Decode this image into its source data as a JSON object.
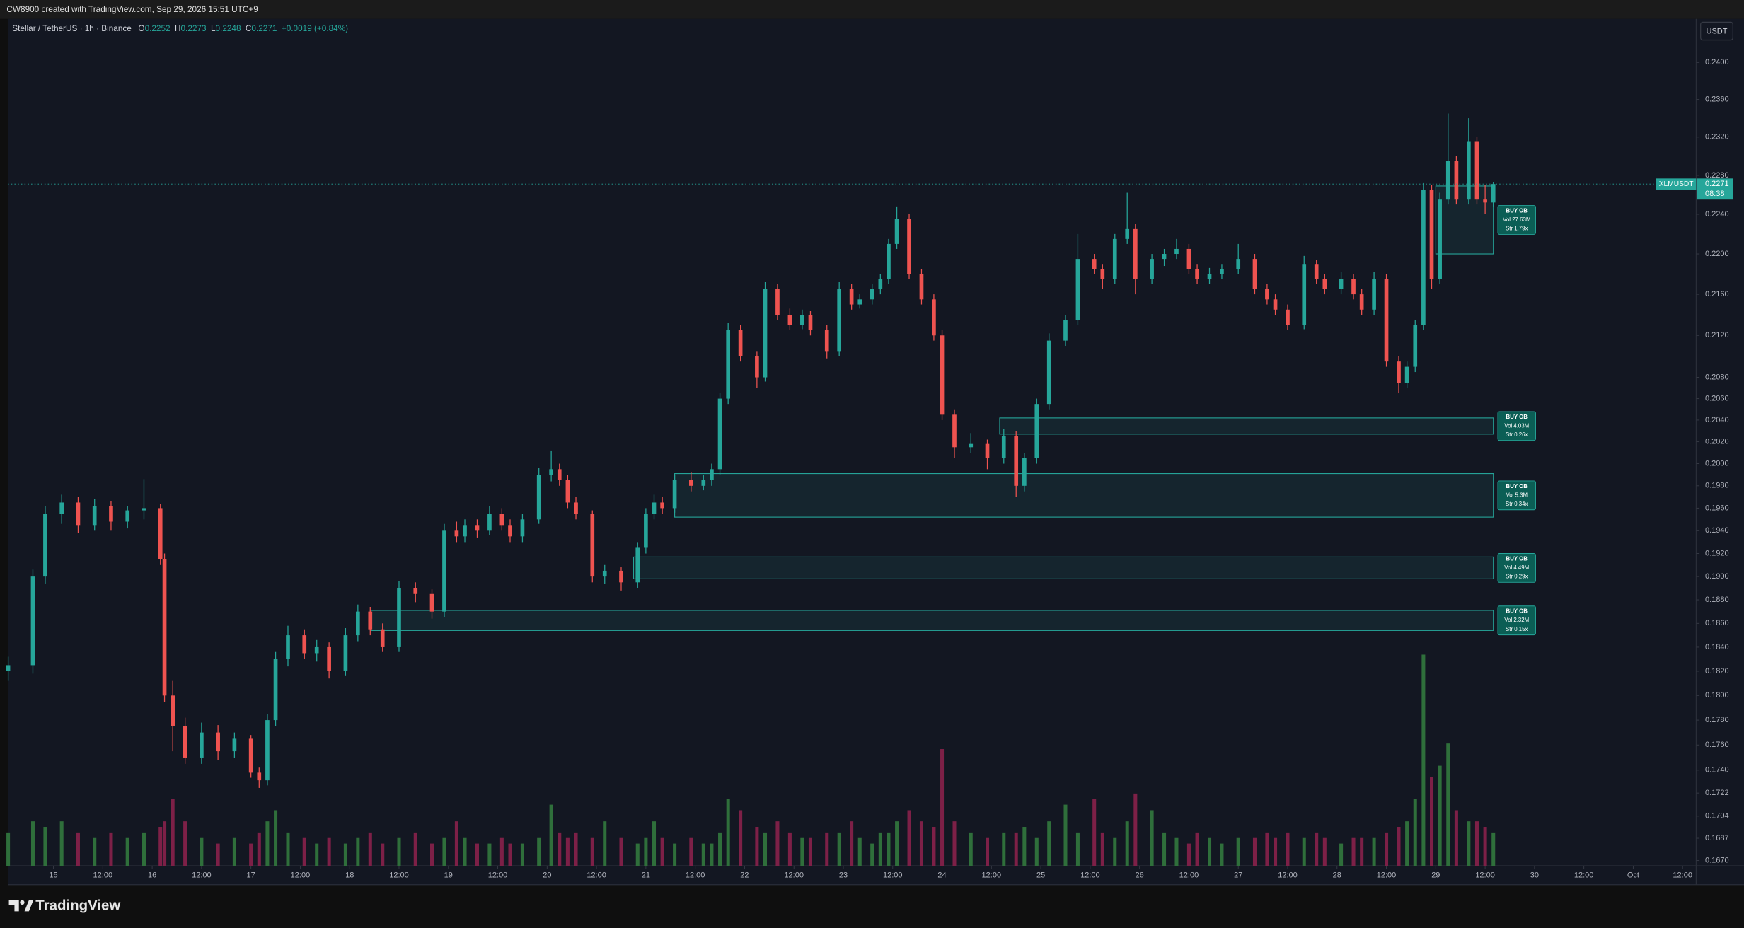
{
  "header": {
    "watermark": "CW8900 created with TradingView.com, Sep 29, 2026 15:51 UTC+9"
  },
  "footer": {
    "brand": "TradingView"
  },
  "chart_data": {
    "type": "candlestick",
    "title": "Stellar / TetherUS · 1h · Binance",
    "ohlc_legend": [
      {
        "label": "O",
        "value": 0.2252
      },
      {
        "label": "H",
        "value": 0.2273
      },
      {
        "label": "L",
        "value": 0.2248
      },
      {
        "label": "C",
        "value": 0.2271
      }
    ],
    "change": "+0.0019 (+0.84%)",
    "currency": "USDT",
    "symbol_tag": "XLMUSDT",
    "last_price": 0.2271,
    "countdown": "08:38",
    "log_scale": true,
    "grid": false,
    "up_color": "#26a69a",
    "down_color": "#ef5350",
    "volume_colors": {
      "up": "#2f6f3b",
      "down": "#7d2047"
    },
    "xlim": [
      -11.1,
      399.3
    ],
    "xticks": [
      {
        "value": 0,
        "label": "15"
      },
      {
        "value": 12,
        "label": "12:00"
      },
      {
        "value": 24,
        "label": "16"
      },
      {
        "value": 36,
        "label": "12:00"
      },
      {
        "value": 48,
        "label": "17"
      },
      {
        "value": 60,
        "label": "12:00"
      },
      {
        "value": 72,
        "label": "18"
      },
      {
        "value": 84,
        "label": "12:00"
      },
      {
        "value": 96,
        "label": "19"
      },
      {
        "value": 108,
        "label": "12:00"
      },
      {
        "value": 120,
        "label": "20"
      },
      {
        "value": 132,
        "label": "12:00"
      },
      {
        "value": 144,
        "label": "21"
      },
      {
        "value": 156,
        "label": "12:00"
      },
      {
        "value": 168,
        "label": "22"
      },
      {
        "value": 180,
        "label": "12:00"
      },
      {
        "value": 192,
        "label": "23"
      },
      {
        "value": 204,
        "label": "12:00"
      },
      {
        "value": 216,
        "label": "24"
      },
      {
        "value": 228,
        "label": "12:00"
      },
      {
        "value": 240,
        "label": "25"
      },
      {
        "value": 252,
        "label": "12:00"
      },
      {
        "value": 264,
        "label": "26"
      },
      {
        "value": 276,
        "label": "12:00"
      },
      {
        "value": 288,
        "label": "27"
      },
      {
        "value": 300,
        "label": "12:00"
      },
      {
        "value": 312,
        "label": "28"
      },
      {
        "value": 324,
        "label": "12:00"
      },
      {
        "value": 336,
        "label": "29"
      },
      {
        "value": 348,
        "label": "12:00"
      },
      {
        "value": 360,
        "label": "30"
      },
      {
        "value": 372,
        "label": "12:00"
      },
      {
        "value": 384,
        "label": "Oct"
      },
      {
        "value": 396,
        "label": "12:00"
      }
    ],
    "ylim": [
      0.1666,
      0.2448
    ],
    "yticks": [
      {
        "value": 0.24,
        "label": "0.2400"
      },
      {
        "value": 0.236,
        "label": "0.2360"
      },
      {
        "value": 0.232,
        "label": "0.2320"
      },
      {
        "value": 0.228,
        "label": "0.2280"
      },
      {
        "value": 0.224,
        "label": "0.2240"
      },
      {
        "value": 0.22,
        "label": "0.2200"
      },
      {
        "value": 0.216,
        "label": "0.2160"
      },
      {
        "value": 0.212,
        "label": "0.2120"
      },
      {
        "value": 0.208,
        "label": "0.2080"
      },
      {
        "value": 0.206,
        "label": "0.2060"
      },
      {
        "value": 0.204,
        "label": "0.2040"
      },
      {
        "value": 0.202,
        "label": "0.2020"
      },
      {
        "value": 0.2,
        "label": "0.2000"
      },
      {
        "value": 0.198,
        "label": "0.1980"
      },
      {
        "value": 0.196,
        "label": "0.1960"
      },
      {
        "value": 0.194,
        "label": "0.1940"
      },
      {
        "value": 0.192,
        "label": "0.1920"
      },
      {
        "value": 0.19,
        "label": "0.1900"
      },
      {
        "value": 0.188,
        "label": "0.1880"
      },
      {
        "value": 0.186,
        "label": "0.1860"
      },
      {
        "value": 0.184,
        "label": "0.1840"
      },
      {
        "value": 0.182,
        "label": "0.1820"
      },
      {
        "value": 0.18,
        "label": "0.1800"
      },
      {
        "value": 0.178,
        "label": "0.1780"
      },
      {
        "value": 0.176,
        "label": "0.1760"
      },
      {
        "value": 0.174,
        "label": "0.1740"
      },
      {
        "value": 0.1722,
        "label": "0.1722"
      },
      {
        "value": 0.1704,
        "label": "0.1704"
      },
      {
        "value": 0.1687,
        "label": "0.1687"
      },
      {
        "value": 0.167,
        "label": "0.1670"
      }
    ],
    "x": [
      -11,
      -5,
      -2,
      2,
      6,
      10,
      14,
      18,
      22,
      26,
      27,
      29,
      32,
      36,
      40,
      44,
      48,
      50,
      52,
      54,
      57,
      61,
      64,
      67,
      71,
      74,
      77,
      80,
      84,
      88,
      92,
      95,
      98,
      100,
      103,
      106,
      109,
      111,
      114,
      118,
      121,
      123,
      125,
      127,
      131,
      134,
      138,
      142,
      144,
      146,
      148,
      151,
      155,
      158,
      160,
      162,
      164,
      167,
      171,
      173,
      176,
      179,
      182,
      184,
      188,
      191,
      194,
      196,
      199,
      201,
      203,
      205,
      208,
      211,
      214,
      216,
      219,
      223,
      227,
      231,
      234,
      236,
      239,
      242,
      246,
      249,
      253,
      255,
      258,
      261,
      263,
      267,
      270,
      273,
      276,
      278,
      281,
      284,
      288,
      292,
      295,
      297,
      300,
      304,
      307,
      309,
      313,
      316,
      318,
      321,
      324,
      327,
      329,
      331,
      333,
      335,
      337,
      339,
      341,
      344,
      346,
      348,
      350
    ],
    "ohlc": [
      [
        0.182,
        0.1832,
        0.1812,
        0.1825
      ],
      [
        0.1825,
        0.1906,
        0.1818,
        0.19
      ],
      [
        0.19,
        0.1962,
        0.1894,
        0.1955
      ],
      [
        0.1955,
        0.1972,
        0.1946,
        0.1965
      ],
      [
        0.1965,
        0.197,
        0.1938,
        0.1945
      ],
      [
        0.1945,
        0.1968,
        0.194,
        0.1962
      ],
      [
        0.1962,
        0.1966,
        0.194,
        0.1948
      ],
      [
        0.1948,
        0.1962,
        0.1942,
        0.1958
      ],
      [
        0.1958,
        0.1986,
        0.195,
        0.196
      ],
      [
        0.196,
        0.1964,
        0.191,
        0.1915
      ],
      [
        0.1915,
        0.192,
        0.1795,
        0.18
      ],
      [
        0.18,
        0.1812,
        0.1755,
        0.1775
      ],
      [
        0.1775,
        0.1782,
        0.1745,
        0.175
      ],
      [
        0.175,
        0.1778,
        0.1745,
        0.177
      ],
      [
        0.177,
        0.1776,
        0.1748,
        0.1755
      ],
      [
        0.1755,
        0.177,
        0.175,
        0.1765
      ],
      [
        0.1765,
        0.1768,
        0.1734,
        0.1738
      ],
      [
        0.1738,
        0.1742,
        0.1726,
        0.1732
      ],
      [
        0.1732,
        0.1785,
        0.1728,
        0.178
      ],
      [
        0.178,
        0.1836,
        0.1775,
        0.183
      ],
      [
        0.183,
        0.1858,
        0.1824,
        0.185
      ],
      [
        0.185,
        0.1855,
        0.183,
        0.1835
      ],
      [
        0.1835,
        0.1846,
        0.1828,
        0.184
      ],
      [
        0.184,
        0.1844,
        0.1814,
        0.182
      ],
      [
        0.182,
        0.1856,
        0.1816,
        0.185
      ],
      [
        0.185,
        0.1876,
        0.1845,
        0.187
      ],
      [
        0.187,
        0.1874,
        0.185,
        0.1855
      ],
      [
        0.1855,
        0.186,
        0.1836,
        0.184
      ],
      [
        0.184,
        0.1896,
        0.1836,
        0.189
      ],
      [
        0.189,
        0.1895,
        0.1878,
        0.1885
      ],
      [
        0.1885,
        0.1889,
        0.1864,
        0.187
      ],
      [
        0.187,
        0.1946,
        0.1865,
        0.194
      ],
      [
        0.194,
        0.1948,
        0.193,
        0.1935
      ],
      [
        0.1935,
        0.195,
        0.193,
        0.1945
      ],
      [
        0.1945,
        0.195,
        0.1934,
        0.194
      ],
      [
        0.194,
        0.1962,
        0.1936,
        0.1955
      ],
      [
        0.1955,
        0.196,
        0.194,
        0.1945
      ],
      [
        0.1945,
        0.195,
        0.193,
        0.1935
      ],
      [
        0.1935,
        0.1955,
        0.193,
        0.195
      ],
      [
        0.195,
        0.1996,
        0.1946,
        0.199
      ],
      [
        0.199,
        0.2012,
        0.1984,
        0.1995
      ],
      [
        0.1995,
        0.2,
        0.198,
        0.1985
      ],
      [
        0.1985,
        0.199,
        0.196,
        0.1965
      ],
      [
        0.1965,
        0.197,
        0.195,
        0.1955
      ],
      [
        0.1955,
        0.1958,
        0.1895,
        0.19
      ],
      [
        0.19,
        0.191,
        0.1894,
        0.1905
      ],
      [
        0.1905,
        0.1908,
        0.1888,
        0.1895
      ],
      [
        0.1895,
        0.193,
        0.189,
        0.1925
      ],
      [
        0.1925,
        0.196,
        0.192,
        0.1955
      ],
      [
        0.1955,
        0.1972,
        0.195,
        0.1965
      ],
      [
        0.1965,
        0.197,
        0.1955,
        0.196
      ],
      [
        0.196,
        0.199,
        0.1956,
        0.1985
      ],
      [
        0.1985,
        0.1992,
        0.1975,
        0.198
      ],
      [
        0.198,
        0.199,
        0.1976,
        0.1985
      ],
      [
        0.1985,
        0.2,
        0.198,
        0.1995
      ],
      [
        0.1995,
        0.2065,
        0.199,
        0.206
      ],
      [
        0.206,
        0.2132,
        0.2055,
        0.2125
      ],
      [
        0.2125,
        0.213,
        0.2095,
        0.21
      ],
      [
        0.21,
        0.2105,
        0.207,
        0.208
      ],
      [
        0.208,
        0.2172,
        0.2076,
        0.2165
      ],
      [
        0.2165,
        0.217,
        0.2135,
        0.214
      ],
      [
        0.214,
        0.2146,
        0.2125,
        0.213
      ],
      [
        0.213,
        0.2145,
        0.2126,
        0.214
      ],
      [
        0.214,
        0.2144,
        0.212,
        0.2125
      ],
      [
        0.2125,
        0.213,
        0.2098,
        0.2105
      ],
      [
        0.2105,
        0.2172,
        0.21,
        0.2165
      ],
      [
        0.2165,
        0.217,
        0.2145,
        0.215
      ],
      [
        0.215,
        0.216,
        0.2146,
        0.2155
      ],
      [
        0.2155,
        0.217,
        0.215,
        0.2165
      ],
      [
        0.2165,
        0.218,
        0.216,
        0.2175
      ],
      [
        0.2175,
        0.2215,
        0.217,
        0.221
      ],
      [
        0.221,
        0.2248,
        0.2205,
        0.2235
      ],
      [
        0.2235,
        0.224,
        0.2175,
        0.218
      ],
      [
        0.218,
        0.2185,
        0.215,
        0.2155
      ],
      [
        0.2155,
        0.216,
        0.2115,
        0.212
      ],
      [
        0.212,
        0.2125,
        0.204,
        0.2045
      ],
      [
        0.2045,
        0.205,
        0.2005,
        0.2015
      ],
      [
        0.2015,
        0.2028,
        0.201,
        0.2018
      ],
      [
        0.2018,
        0.2022,
        0.1995,
        0.2005
      ],
      [
        0.2005,
        0.2032,
        0.2,
        0.2025
      ],
      [
        0.2025,
        0.203,
        0.197,
        0.198
      ],
      [
        0.198,
        0.201,
        0.1975,
        0.2005
      ],
      [
        0.2005,
        0.206,
        0.2,
        0.2055
      ],
      [
        0.2055,
        0.2122,
        0.205,
        0.2115
      ],
      [
        0.2115,
        0.214,
        0.211,
        0.2135
      ],
      [
        0.2135,
        0.222,
        0.213,
        0.2195
      ],
      [
        0.2195,
        0.22,
        0.218,
        0.2185
      ],
      [
        0.2185,
        0.219,
        0.2165,
        0.2175
      ],
      [
        0.2175,
        0.222,
        0.217,
        0.2215
      ],
      [
        0.2215,
        0.2262,
        0.221,
        0.2225
      ],
      [
        0.2225,
        0.223,
        0.216,
        0.2175
      ],
      [
        0.2175,
        0.22,
        0.217,
        0.2195
      ],
      [
        0.2195,
        0.2205,
        0.2188,
        0.22
      ],
      [
        0.22,
        0.2215,
        0.2195,
        0.2205
      ],
      [
        0.2205,
        0.221,
        0.218,
        0.2185
      ],
      [
        0.2185,
        0.219,
        0.217,
        0.2175
      ],
      [
        0.2175,
        0.2186,
        0.217,
        0.218
      ],
      [
        0.218,
        0.219,
        0.2175,
        0.2185
      ],
      [
        0.2185,
        0.221,
        0.218,
        0.2195
      ],
      [
        0.2195,
        0.22,
        0.216,
        0.2165
      ],
      [
        0.2165,
        0.217,
        0.215,
        0.2155
      ],
      [
        0.2155,
        0.216,
        0.214,
        0.2145
      ],
      [
        0.2145,
        0.215,
        0.2125,
        0.213
      ],
      [
        0.213,
        0.2198,
        0.2126,
        0.219
      ],
      [
        0.219,
        0.2194,
        0.217,
        0.2175
      ],
      [
        0.2175,
        0.218,
        0.216,
        0.2165
      ],
      [
        0.2165,
        0.2182,
        0.216,
        0.2175
      ],
      [
        0.2175,
        0.218,
        0.2155,
        0.216
      ],
      [
        0.216,
        0.2165,
        0.214,
        0.2145
      ],
      [
        0.2145,
        0.2182,
        0.214,
        0.2175
      ],
      [
        0.2175,
        0.218,
        0.209,
        0.2095
      ],
      [
        0.2095,
        0.21,
        0.2065,
        0.2075
      ],
      [
        0.2075,
        0.2095,
        0.207,
        0.209
      ],
      [
        0.209,
        0.2135,
        0.2085,
        0.213
      ],
      [
        0.213,
        0.2272,
        0.2125,
        0.2265
      ],
      [
        0.2265,
        0.227,
        0.2165,
        0.2175
      ],
      [
        0.2175,
        0.2262,
        0.217,
        0.2255
      ],
      [
        0.2255,
        0.2345,
        0.225,
        0.2295
      ],
      [
        0.2295,
        0.23,
        0.225,
        0.2255
      ],
      [
        0.2255,
        0.234,
        0.225,
        0.2315
      ],
      [
        0.2315,
        0.232,
        0.225,
        0.2255
      ],
      [
        0.2255,
        0.227,
        0.224,
        0.2252
      ],
      [
        0.2252,
        0.2273,
        0.2248,
        0.2271
      ]
    ],
    "volume": [
      3,
      4,
      3.5,
      4,
      3,
      2.5,
      3,
      2.5,
      3,
      3.5,
      4,
      6,
      4,
      2.5,
      2,
      2.5,
      2,
      3,
      4,
      5,
      3,
      2.5,
      2,
      2.5,
      2,
      2.5,
      3,
      2,
      2.5,
      3,
      2,
      2.5,
      4,
      2.5,
      2,
      2,
      2.5,
      2,
      2,
      2.5,
      5.5,
      3,
      2.5,
      3,
      2.5,
      4,
      2.5,
      2,
      2.5,
      4,
      2.5,
      2,
      2.5,
      2,
      2,
      3,
      6,
      5,
      3.5,
      3,
      4,
      3,
      2.5,
      2.5,
      3,
      3,
      4,
      2.5,
      2,
      3,
      3,
      4,
      5,
      4,
      3.5,
      10.5,
      4,
      3,
      2.5,
      3,
      3,
      3.5,
      2.5,
      4,
      5.5,
      3,
      6,
      3,
      2.5,
      4,
      6.5,
      5,
      3,
      2.5,
      2,
      3,
      2.5,
      2,
      2.5,
      2.5,
      3,
      2.5,
      3,
      2.5,
      3,
      2.5,
      2,
      2.5,
      2.5,
      2.5,
      3,
      3.5,
      4,
      6,
      19,
      8,
      9,
      11,
      5,
      4,
      4,
      3.5,
      3
    ],
    "order_blocks": [
      {
        "top": 0.2269,
        "bottom": 0.22,
        "x": [
          336,
          350
        ],
        "label": [
          "BUY OB",
          "Vol 27.63M",
          "Str 1.79x"
        ]
      },
      {
        "top": 0.2042,
        "bottom": 0.2027,
        "x": [
          230,
          350
        ],
        "label": [
          "BUY OB",
          "Vol 4.03M",
          "Str 0.26x"
        ]
      },
      {
        "top": 0.1991,
        "bottom": 0.1952,
        "x": [
          151,
          350
        ],
        "label": [
          "BUY OB",
          "Vol 5.3M",
          "Str 0.34x"
        ]
      },
      {
        "top": 0.1917,
        "bottom": 0.1898,
        "x": [
          141,
          350
        ],
        "label": [
          "BUY OB",
          "Vol 4.49M",
          "Str 0.29x"
        ]
      },
      {
        "top": 0.1871,
        "bottom": 0.1854,
        "x": [
          77,
          350
        ],
        "label": [
          "BUY OB",
          "Vol 2.32M",
          "Str 0.15x"
        ]
      }
    ]
  }
}
